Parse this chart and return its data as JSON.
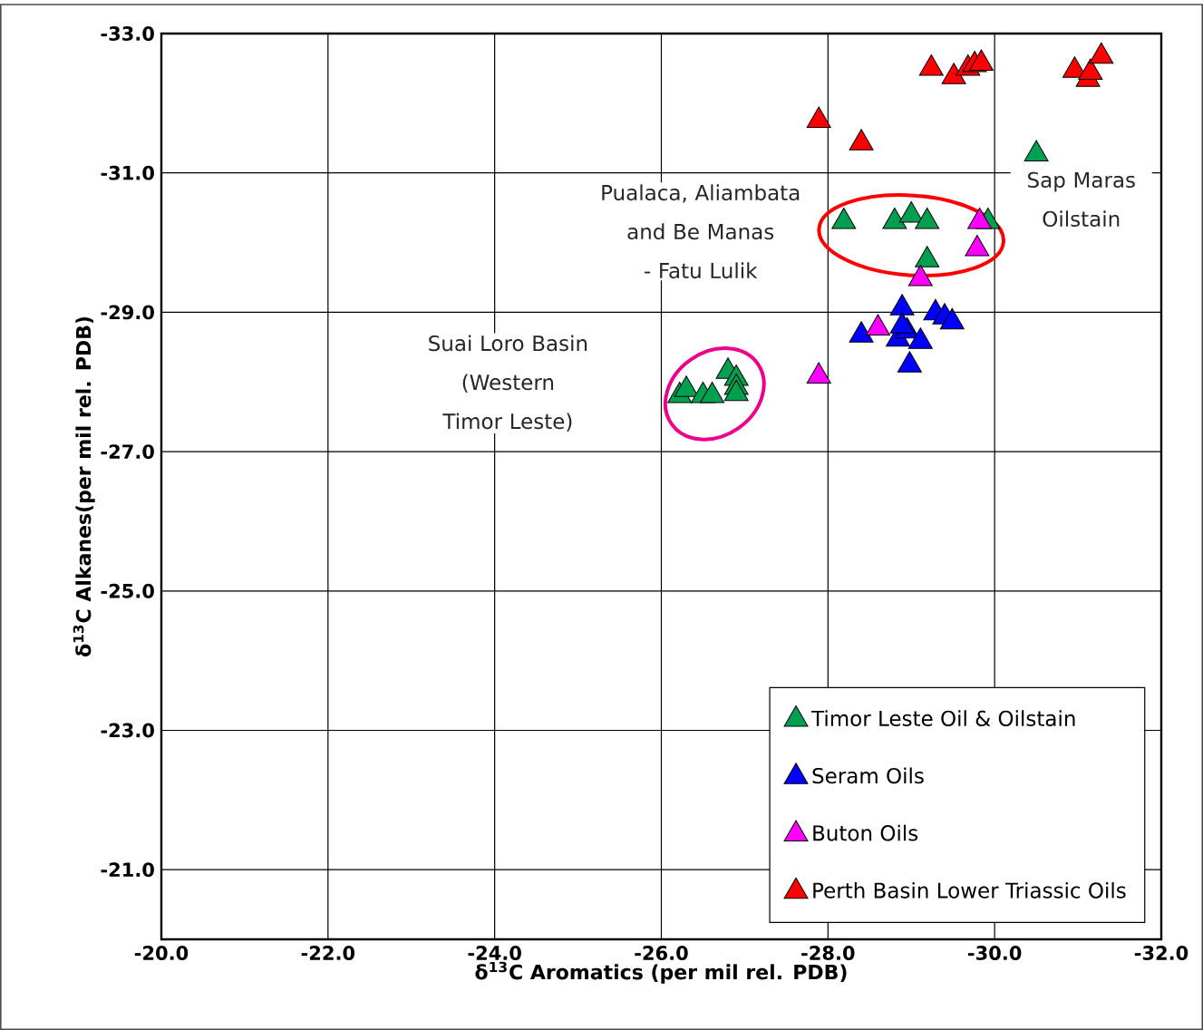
{
  "chart_data": {
    "type": "scatter",
    "xlabel": "δ$^{13}$C Aromatics (per mil rel. PDB)",
    "ylabel": "δ$^{13}$C Alkanes(per mil rel. PDB)",
    "xlim": [
      -20,
      -32
    ],
    "ylim": [
      -20,
      -33
    ],
    "xticks": [
      {
        "value": -20,
        "label": "-20.0"
      },
      {
        "value": -22,
        "label": "-22.0"
      },
      {
        "value": -24,
        "label": "-24.0"
      },
      {
        "value": -26,
        "label": "-26.0"
      },
      {
        "value": -28,
        "label": "-28.0"
      },
      {
        "value": -30,
        "label": "-30.0"
      },
      {
        "value": -32,
        "label": "-32.0"
      }
    ],
    "yticks": [
      {
        "value": -33,
        "label": "-33.0"
      },
      {
        "value": -31,
        "label": "-31.0"
      },
      {
        "value": -29,
        "label": "-29.0"
      },
      {
        "value": -27,
        "label": "-27.0"
      },
      {
        "value": -25,
        "label": "-25.0"
      },
      {
        "value": -23,
        "label": "-23.0"
      },
      {
        "value": -21,
        "label": "-21.0"
      }
    ],
    "grid": true,
    "legend": "bottom right",
    "marker": "triangle",
    "annotations": [
      "Pualaca, Aliambata and Be Manas - Fatu Lulik",
      "Sap Maras Oilstain",
      "Suai Loro Basin (Western Timor Leste)"
    ],
    "series": [
      {
        "name": "Timor Leste Oil & Oilstain",
        "color": "#00a050",
        "x": [
          -30.5,
          -28.19,
          -28.8,
          -29.0,
          -29.19,
          -29.92,
          -29.19,
          -26.22,
          -26.3,
          -26.5,
          -26.61,
          -26.8,
          -26.9,
          -26.9,
          -26.9
        ],
        "values": [
          -31.27,
          -30.3,
          -30.3,
          -30.39,
          -30.3,
          -30.3,
          -29.75,
          -27.8,
          -27.89,
          -27.8,
          -27.8,
          -28.15,
          -28.05,
          -27.92,
          -27.83
        ]
      },
      {
        "name": "Seram Oils",
        "color": "#0000ff",
        "x": [
          -28.89,
          -28.4,
          -29.29,
          -29.4,
          -29.49,
          -28.84,
          -28.95,
          -29.11,
          -28.89,
          -28.98
        ],
        "values": [
          -29.06,
          -28.67,
          -28.99,
          -28.93,
          -28.86,
          -28.61,
          -28.73,
          -28.58,
          -28.8,
          -28.24
        ]
      },
      {
        "name": "Buton Oils",
        "color": "#ff00ff",
        "x": [
          -29.82,
          -29.79,
          -29.11,
          -28.6,
          -27.89
        ],
        "values": [
          -30.3,
          -29.91,
          -29.48,
          -28.77,
          -28.08
        ]
      },
      {
        "name": "Perth Basin Lower Triassic Oils",
        "color": "#ff0000",
        "x": [
          -29.24,
          -29.51,
          -29.68,
          -29.76,
          -29.84,
          -30.96,
          -31.12,
          -31.15,
          -31.28,
          -27.89,
          -28.4
        ],
        "values": [
          -32.5,
          -32.38,
          -32.5,
          -32.55,
          -32.57,
          -32.47,
          -32.34,
          -32.44,
          -32.67,
          -31.75,
          -31.43
        ]
      }
    ]
  }
}
